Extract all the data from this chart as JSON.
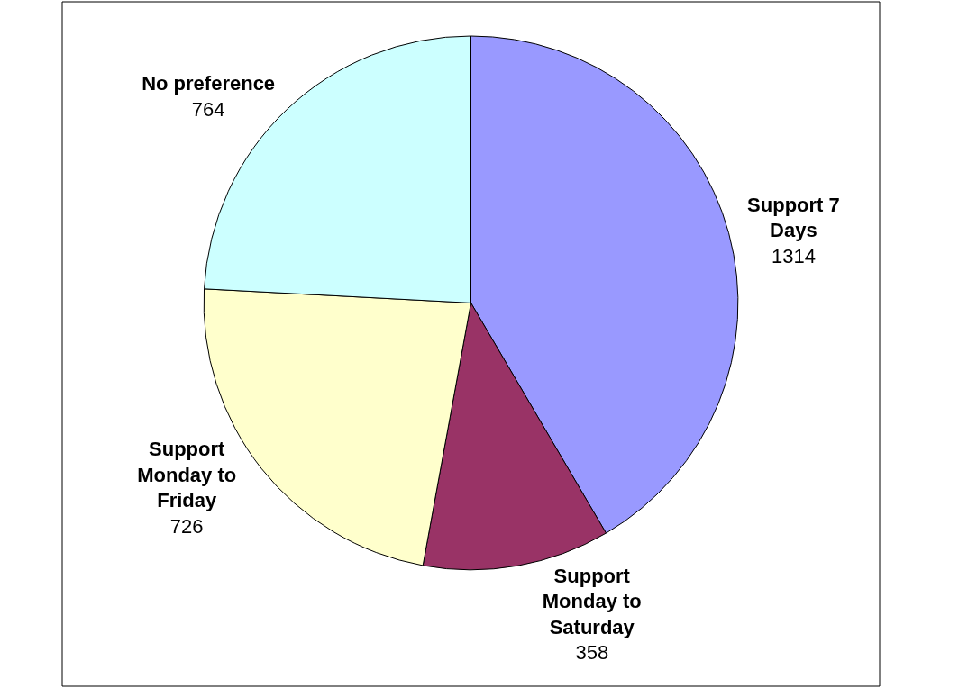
{
  "chart_data": {
    "type": "pie",
    "categories": [
      "Support 7 Days",
      "Support Monday to Saturday",
      "Support Monday to Friday",
      "No preference"
    ],
    "values": [
      1314,
      358,
      726,
      764
    ],
    "colors": [
      "#9999ff",
      "#993366",
      "#ffffcc",
      "#ccffff"
    ],
    "data_labels": true,
    "legend": false
  }
}
